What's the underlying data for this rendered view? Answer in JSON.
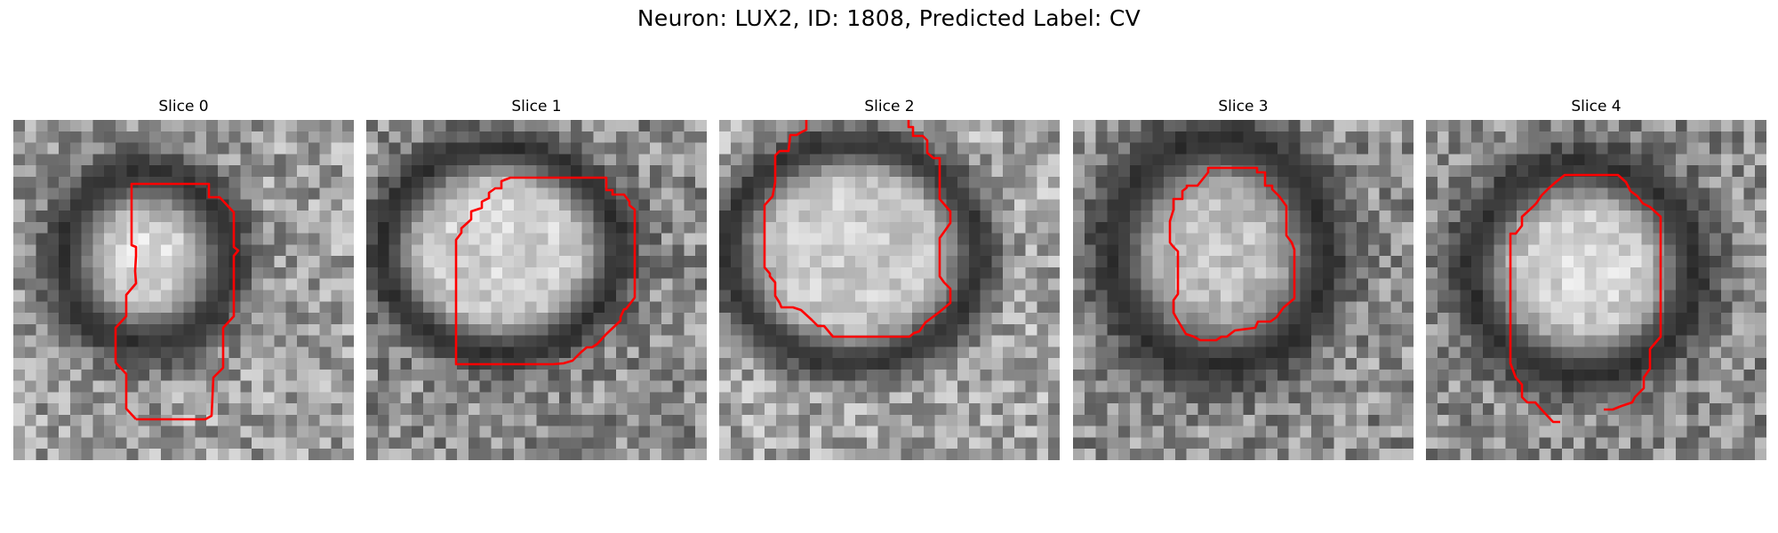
{
  "figure": {
    "title": "Neuron: LUX2, ID: 1808, Predicted Label: CV"
  },
  "panels": [
    {
      "title": "Slice 0"
    },
    {
      "title": "Slice 1"
    },
    {
      "title": "Slice 2"
    },
    {
      "title": "Slice 3"
    },
    {
      "title": "Slice 4"
    }
  ],
  "colors": {
    "contour": "#ff0000",
    "colormap": "gray"
  }
}
